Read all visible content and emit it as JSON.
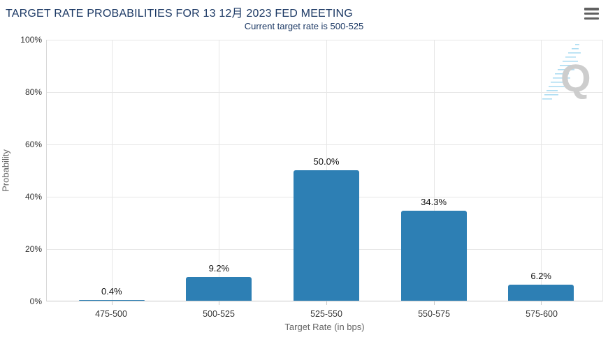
{
  "header": {
    "menu_icon": "hamburger-menu"
  },
  "watermark": {
    "letter": "Q"
  },
  "colors": {
    "bar": "#2d7fb4",
    "title": "#1b3864",
    "gridline": "#e6e6e6",
    "watermark_letter": "#cbcbcb",
    "watermark_streak": "#a9dcf2"
  },
  "chart_data": {
    "type": "bar",
    "title": "TARGET RATE PROBABILITIES FOR 13 12月 2023 FED MEETING",
    "subtitle": "Current target rate is 500-525",
    "categories": [
      "475-500",
      "500-525",
      "525-550",
      "550-575",
      "575-600"
    ],
    "values": [
      0.4,
      9.2,
      50.0,
      34.3,
      6.2
    ],
    "labels": [
      "0.4%",
      "9.2%",
      "50.0%",
      "34.3%",
      "6.2%"
    ],
    "xlabel": "Target Rate (in bps)",
    "ylabel": "Probability",
    "ylim": [
      0,
      100
    ],
    "yticks": [
      "0%",
      "20%",
      "40%",
      "60%",
      "80%",
      "100%"
    ],
    "grid": true,
    "legend": "none",
    "bar_color": "#2d7fb4"
  }
}
